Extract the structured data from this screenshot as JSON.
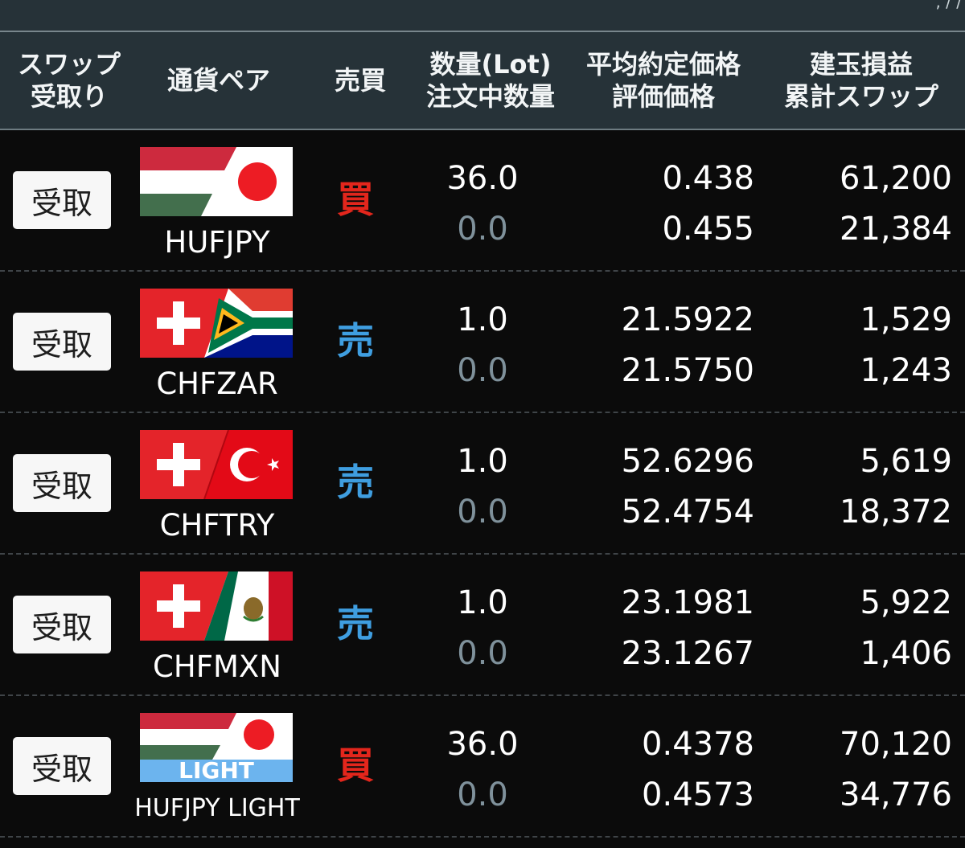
{
  "topbar": {
    "partial_text": ", / /"
  },
  "header": {
    "col_swap": [
      "スワップ",
      "受取り"
    ],
    "col_pair": "通貨ペア",
    "col_side": "売買",
    "col_qty": [
      "数量(Lot)",
      "注文中数量"
    ],
    "col_price": [
      "平均約定価格",
      "評価価格"
    ],
    "col_pl": [
      "建玉損益",
      "累計スワップ"
    ]
  },
  "colors": {
    "buy": "#e3261c",
    "sell": "#3f9ee0",
    "pending_qty": "#7f919b"
  },
  "rows": [
    {
      "button": "受取",
      "flag": "hungary-japan-flag",
      "pair": "HUFJPY",
      "side": "買",
      "side_type": "buy",
      "qty": "36.0",
      "pending": "0.0",
      "avg_price": "0.438",
      "eval_price": "0.455",
      "pl": "61,200",
      "swap": "21,384"
    },
    {
      "button": "受取",
      "flag": "switzerland-southafrica-flag",
      "pair": "CHFZAR",
      "side": "売",
      "side_type": "sell",
      "qty": "1.0",
      "pending": "0.0",
      "avg_price": "21.5922",
      "eval_price": "21.5750",
      "pl": "1,529",
      "swap": "1,243"
    },
    {
      "button": "受取",
      "flag": "switzerland-turkey-flag",
      "pair": "CHFTRY",
      "side": "売",
      "side_type": "sell",
      "qty": "1.0",
      "pending": "0.0",
      "avg_price": "52.6296",
      "eval_price": "52.4754",
      "pl": "5,619",
      "swap": "18,372"
    },
    {
      "button": "受取",
      "flag": "switzerland-mexico-flag",
      "pair": "CHFMXN",
      "side": "売",
      "side_type": "sell",
      "qty": "1.0",
      "pending": "0.0",
      "avg_price": "23.1981",
      "eval_price": "23.1267",
      "pl": "5,922",
      "swap": "1,406"
    },
    {
      "button": "受取",
      "flag": "hungary-japan-light-flag",
      "flag_label": "LIGHT",
      "pair": "HUFJPY LIGHT",
      "side": "買",
      "side_type": "buy",
      "qty": "36.0",
      "pending": "0.0",
      "avg_price": "0.4378",
      "eval_price": "0.4573",
      "pl": "70,120",
      "swap": "34,776"
    }
  ]
}
